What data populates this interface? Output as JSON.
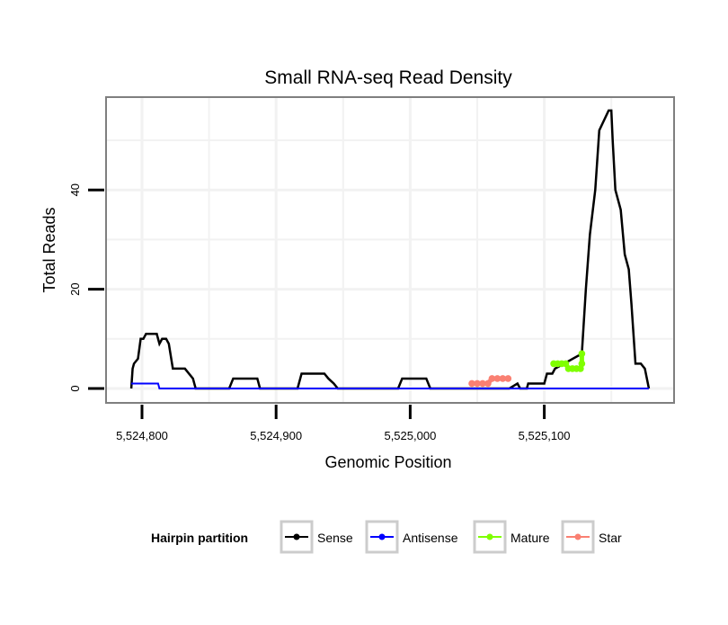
{
  "chart_data": {
    "type": "line",
    "title": "Small RNA-seq Read Density",
    "xlabel": "Genomic Position",
    "ylabel": "Total Reads",
    "xlim": [
      5524792,
      5525192
    ],
    "ylim": [
      -3,
      59
    ],
    "x_ticks": [
      5524800,
      5524900,
      5525000,
      5525100
    ],
    "x_tick_labels": [
      "5,524,800",
      "5,524,900",
      "5,525,000",
      "5,525,100"
    ],
    "y_ticks": [
      0,
      20,
      40
    ],
    "y_tick_labels": [
      "0",
      "20",
      "40"
    ],
    "grid": true,
    "legend": {
      "title": "Hairpin partition",
      "placement": "bottom"
    },
    "series": [
      {
        "name": "Sense",
        "color": "#000000",
        "points": [
          [
            5524792,
            0
          ],
          [
            5524793,
            4
          ],
          [
            5524794,
            5
          ],
          [
            5524797,
            6
          ],
          [
            5524799,
            10
          ],
          [
            5524801,
            10
          ],
          [
            5524803,
            11
          ],
          [
            5524811,
            11
          ],
          [
            5524813,
            9
          ],
          [
            5524815,
            10
          ],
          [
            5524818,
            10
          ],
          [
            5524820,
            9
          ],
          [
            5524823,
            4
          ],
          [
            5524832,
            4
          ],
          [
            5524835,
            3
          ],
          [
            5524838,
            2
          ],
          [
            5524840,
            0
          ],
          [
            5524865,
            0
          ],
          [
            5524868,
            2
          ],
          [
            5524886,
            2
          ],
          [
            5524888,
            0
          ],
          [
            5524916,
            0
          ],
          [
            5524919,
            3
          ],
          [
            5524936,
            3
          ],
          [
            5524939,
            2
          ],
          [
            5524943,
            1
          ],
          [
            5524946,
            0
          ],
          [
            5524991,
            0
          ],
          [
            5524994,
            2
          ],
          [
            5525012,
            2
          ],
          [
            5525015,
            0
          ],
          [
            5525074,
            0
          ],
          [
            5525080,
            1
          ],
          [
            5525082,
            0
          ],
          [
            5525087,
            0
          ],
          [
            5525088,
            1
          ],
          [
            5525100,
            1
          ],
          [
            5525102,
            3
          ],
          [
            5525106,
            3
          ],
          [
            5525108,
            4
          ],
          [
            5525128,
            7
          ],
          [
            5525131,
            20
          ],
          [
            5525134,
            31
          ],
          [
            5525138,
            40
          ],
          [
            5525141,
            52
          ],
          [
            5525148,
            56
          ],
          [
            5525150,
            56
          ],
          [
            5525151,
            50
          ],
          [
            5525153,
            40
          ],
          [
            5525157,
            36
          ],
          [
            5525160,
            27
          ],
          [
            5525163,
            24
          ],
          [
            5525165,
            17
          ],
          [
            5525168,
            5
          ],
          [
            5525172,
            5
          ],
          [
            5525175,
            4
          ],
          [
            5525178,
            0
          ]
        ]
      },
      {
        "name": "Antisense",
        "color": "#0000ff",
        "points": [
          [
            5524792,
            1
          ],
          [
            5524812,
            1
          ],
          [
            5524813,
            0
          ],
          [
            5525178,
            0
          ]
        ]
      },
      {
        "name": "Mature",
        "color": "#7fff00",
        "points": [
          [
            5525107,
            5
          ],
          [
            5525110,
            5
          ],
          [
            5525113,
            5
          ],
          [
            5525116,
            5
          ],
          [
            5525118,
            4
          ],
          [
            5525121,
            4
          ],
          [
            5525124,
            4
          ],
          [
            5525127,
            4
          ],
          [
            5525128,
            5
          ],
          [
            5525128,
            7
          ]
        ]
      },
      {
        "name": "Star",
        "color": "#fa8072",
        "points": [
          [
            5525046,
            1
          ],
          [
            5525050,
            1
          ],
          [
            5525054,
            1
          ],
          [
            5525058,
            1
          ],
          [
            5525061,
            2
          ],
          [
            5525065,
            2
          ],
          [
            5525069,
            2
          ],
          [
            5525073,
            2
          ]
        ]
      }
    ]
  }
}
